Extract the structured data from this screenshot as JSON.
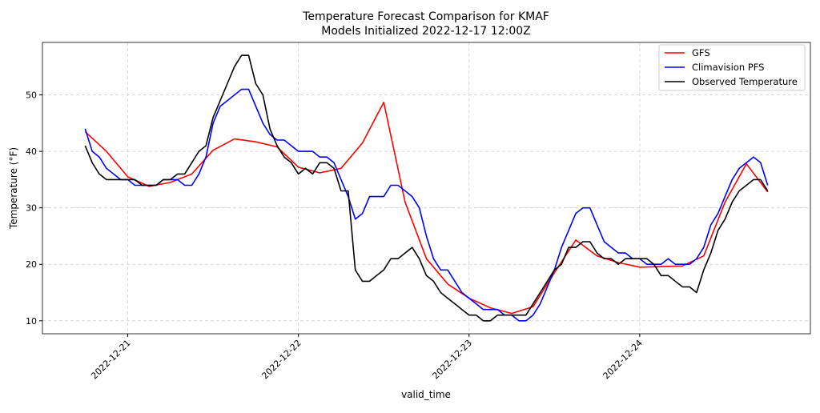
{
  "chart_data": {
    "type": "line",
    "title": "Temperature Forecast Comparison for KMAF",
    "subtitle": "Models Initialized 2022-12-17 12:00Z",
    "xlabel": "valid_time",
    "ylabel": "Temperature (°F)",
    "xlim": [
      "2022-12-20 12:00",
      "2022-12-25 00:00"
    ],
    "ylim": [
      7.7,
      59.3
    ],
    "x_ticks": [
      "2022-12-21",
      "2022-12-22",
      "2022-12-23",
      "2022-12-24"
    ],
    "y_ticks": [
      10,
      20,
      30,
      40,
      50
    ],
    "grid": true,
    "legend_position": "top-right",
    "series": [
      {
        "name": "GFS",
        "color": "#ff0000",
        "x": [
          "2022-12-20 18:00",
          "2022-12-20 21:00",
          "2022-12-21 00:00",
          "2022-12-21 03:00",
          "2022-12-21 06:00",
          "2022-12-21 09:00",
          "2022-12-21 12:00",
          "2022-12-21 15:00",
          "2022-12-21 18:00",
          "2022-12-21 21:00",
          "2022-12-22 00:00",
          "2022-12-22 03:00",
          "2022-12-22 06:00",
          "2022-12-22 09:00",
          "2022-12-22 12:00",
          "2022-12-22 15:00",
          "2022-12-22 18:00",
          "2022-12-22 21:00",
          "2022-12-23 00:00",
          "2022-12-23 03:00",
          "2022-12-23 06:00",
          "2022-12-23 09:00",
          "2022-12-23 12:00",
          "2022-12-23 15:00",
          "2022-12-23 18:00",
          "2022-12-23 21:00",
          "2022-12-24 00:00",
          "2022-12-24 03:00",
          "2022-12-24 06:00",
          "2022-12-24 09:00",
          "2022-12-24 12:00",
          "2022-12-24 15:00",
          "2022-12-24 18:00"
        ],
        "values": [
          43.5,
          40,
          35.5,
          33.8,
          34.5,
          36,
          40.2,
          42.2,
          41.7,
          40.8,
          37.2,
          36.2,
          37,
          41.5,
          48.7,
          31,
          21,
          16.5,
          14,
          12.3,
          11.3,
          12.5,
          18.5,
          24.3,
          21.5,
          20.3,
          19.5,
          19.6,
          19.7,
          21.5,
          31,
          37.8,
          32.8
        ]
      },
      {
        "name": "Climavision PFS",
        "color": "#0000ff",
        "hourly_from": "2022-12-20 18:00",
        "values": [
          44,
          40,
          39,
          37,
          36,
          35,
          35,
          34,
          34,
          34,
          34,
          35,
          35,
          35,
          34,
          34,
          36,
          39,
          45,
          48,
          49,
          50,
          51,
          51,
          48,
          45,
          43,
          42,
          42,
          41,
          40,
          40,
          40,
          39,
          39,
          38,
          35,
          32,
          28,
          29,
          32,
          32,
          32,
          34,
          34,
          33,
          32,
          30,
          25,
          21,
          19,
          19,
          17,
          15,
          14,
          13,
          12,
          12,
          12,
          11,
          11,
          10,
          10,
          11,
          13,
          16,
          19,
          23,
          26,
          29,
          30,
          30,
          27,
          24,
          23,
          22,
          22,
          21,
          21,
          20,
          20,
          20,
          21,
          20,
          20,
          20,
          21,
          23,
          27,
          29,
          32,
          35,
          37,
          38,
          39,
          38,
          34
        ]
      },
      {
        "name": "Observed Temperature",
        "color": "#000000",
        "hourly_from": "2022-12-20 18:00",
        "values": [
          41,
          38,
          36,
          35,
          35,
          35,
          35,
          35,
          34,
          34,
          34,
          35,
          35,
          36,
          36,
          38,
          40,
          41,
          46,
          49,
          52,
          55,
          57,
          57,
          52,
          50,
          44,
          41,
          39,
          38,
          36,
          37,
          36,
          38,
          38,
          37,
          33,
          33,
          19,
          17,
          17,
          18,
          19,
          21,
          21,
          22,
          23,
          21,
          18,
          17,
          15,
          14,
          13,
          12,
          11,
          11,
          10,
          10,
          11,
          11,
          11,
          11,
          11,
          13,
          15,
          17,
          19,
          20,
          23,
          23,
          24,
          24,
          22,
          21,
          21,
          20,
          21,
          21,
          21,
          21,
          20,
          18,
          18,
          17,
          16,
          16,
          15,
          19,
          22,
          26,
          28,
          31,
          33,
          34,
          35,
          35,
          33
        ]
      }
    ]
  }
}
